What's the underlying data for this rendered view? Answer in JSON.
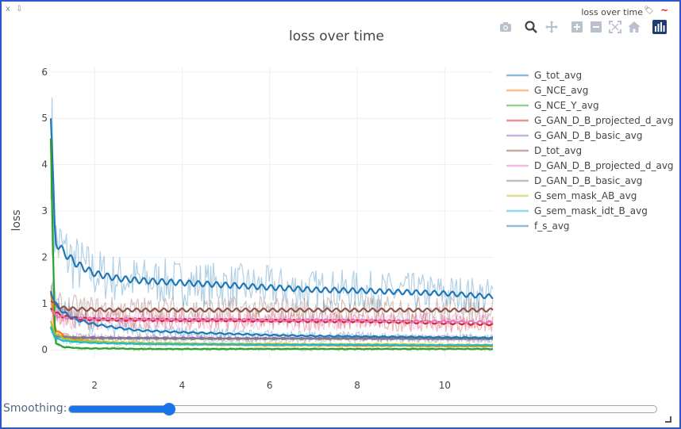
{
  "window": {
    "close_label": "x",
    "pin_label": "⇩",
    "pane_title": "loss over time",
    "tag_icon": "tag-icon",
    "wave_icon": "wave-icon"
  },
  "modebar": [
    {
      "name": "camera-icon",
      "label": "Download plot as png"
    },
    {
      "name": "zoom-icon",
      "label": "Zoom"
    },
    {
      "name": "pan-icon",
      "label": "Pan"
    },
    {
      "name": "zoom-in-icon",
      "label": "Zoom in"
    },
    {
      "name": "zoom-out-icon",
      "label": "Zoom out"
    },
    {
      "name": "autoscale-icon",
      "label": "Autoscale"
    },
    {
      "name": "home-icon",
      "label": "Reset axes"
    },
    {
      "name": "plotly-logo-icon",
      "label": "Produced with Plotly"
    }
  ],
  "controls": {
    "smoothing_label": "Smoothing:",
    "smoothing_value": 0.17
  },
  "chart_data": {
    "type": "line",
    "title": "loss over time",
    "xlabel": "",
    "ylabel": "loss",
    "xlim": [
      1,
      11.1
    ],
    "ylim": [
      -0.15,
      6.1
    ],
    "x_ticks": [
      2,
      4,
      6,
      8,
      10
    ],
    "y_ticks": [
      0,
      1,
      2,
      3,
      4,
      5,
      6
    ],
    "grid": true,
    "legend_position": "top-right",
    "x": [
      1,
      1.1,
      1.3,
      1.6,
      2,
      2.5,
      3,
      4,
      5,
      6,
      7,
      8,
      9,
      10,
      11.1
    ],
    "series": [
      {
        "name": "G_tot_avg",
        "color": "#1f77b4",
        "values": [
          5.0,
          2.35,
          2.1,
          1.85,
          1.65,
          1.55,
          1.5,
          1.45,
          1.4,
          1.35,
          1.3,
          1.28,
          1.25,
          1.22,
          1.15
        ]
      },
      {
        "name": "G_NCE_avg",
        "color": "#ff7f0e",
        "values": [
          1.2,
          0.45,
          0.3,
          0.22,
          0.18,
          0.15,
          0.13,
          0.12,
          0.11,
          0.1,
          0.1,
          0.09,
          0.09,
          0.08,
          0.08
        ]
      },
      {
        "name": "G_NCE_Y_avg",
        "color": "#2ca02c",
        "values": [
          4.4,
          0.15,
          0.06,
          0.04,
          0.03,
          0.03,
          0.02,
          0.02,
          0.02,
          0.02,
          0.02,
          0.02,
          0.02,
          0.02,
          0.02
        ]
      },
      {
        "name": "G_GAN_D_B_projected_d_avg",
        "color": "#d62728",
        "values": [
          0.9,
          0.8,
          0.72,
          0.68,
          0.66,
          0.65,
          0.65,
          0.64,
          0.64,
          0.63,
          0.62,
          0.62,
          0.6,
          0.58,
          0.55
        ]
      },
      {
        "name": "G_GAN_D_B_basic_avg",
        "color": "#9467bd",
        "values": [
          0.5,
          0.3,
          0.28,
          0.27,
          0.27,
          0.26,
          0.26,
          0.26,
          0.25,
          0.25,
          0.25,
          0.25,
          0.25,
          0.24,
          0.24
        ]
      },
      {
        "name": "D_tot_avg",
        "color": "#8c564b",
        "values": [
          1.1,
          0.95,
          0.9,
          0.88,
          0.87,
          0.86,
          0.86,
          0.86,
          0.86,
          0.86,
          0.86,
          0.86,
          0.86,
          0.86,
          0.86
        ]
      },
      {
        "name": "D_GAN_D_B_projected_d_avg",
        "color": "#e377c2",
        "values": [
          0.85,
          0.75,
          0.7,
          0.68,
          0.67,
          0.66,
          0.66,
          0.65,
          0.65,
          0.64,
          0.64,
          0.63,
          0.62,
          0.61,
          0.6
        ]
      },
      {
        "name": "D_GAN_D_B_basic_avg",
        "color": "#7f7f7f",
        "values": [
          0.45,
          0.3,
          0.27,
          0.26,
          0.25,
          0.25,
          0.25,
          0.24,
          0.24,
          0.24,
          0.24,
          0.24,
          0.24,
          0.24,
          0.24
        ]
      },
      {
        "name": "G_sem_mask_AB_avg",
        "color": "#bcbd22",
        "values": [
          0.6,
          0.35,
          0.25,
          0.2,
          0.18,
          0.16,
          0.15,
          0.14,
          0.13,
          0.13,
          0.12,
          0.12,
          0.12,
          0.11,
          0.11
        ]
      },
      {
        "name": "G_sem_mask_idt_B_avg",
        "color": "#17becf",
        "values": [
          0.5,
          0.25,
          0.2,
          0.17,
          0.15,
          0.14,
          0.13,
          0.12,
          0.12,
          0.11,
          0.11,
          0.11,
          0.1,
          0.1,
          0.1
        ]
      },
      {
        "name": "f_s_avg",
        "color": "#1f77b4",
        "values": [
          1.3,
          1.0,
          0.8,
          0.65,
          0.55,
          0.48,
          0.42,
          0.38,
          0.35,
          0.32,
          0.3,
          0.29,
          0.28,
          0.27,
          0.26
        ]
      }
    ]
  }
}
